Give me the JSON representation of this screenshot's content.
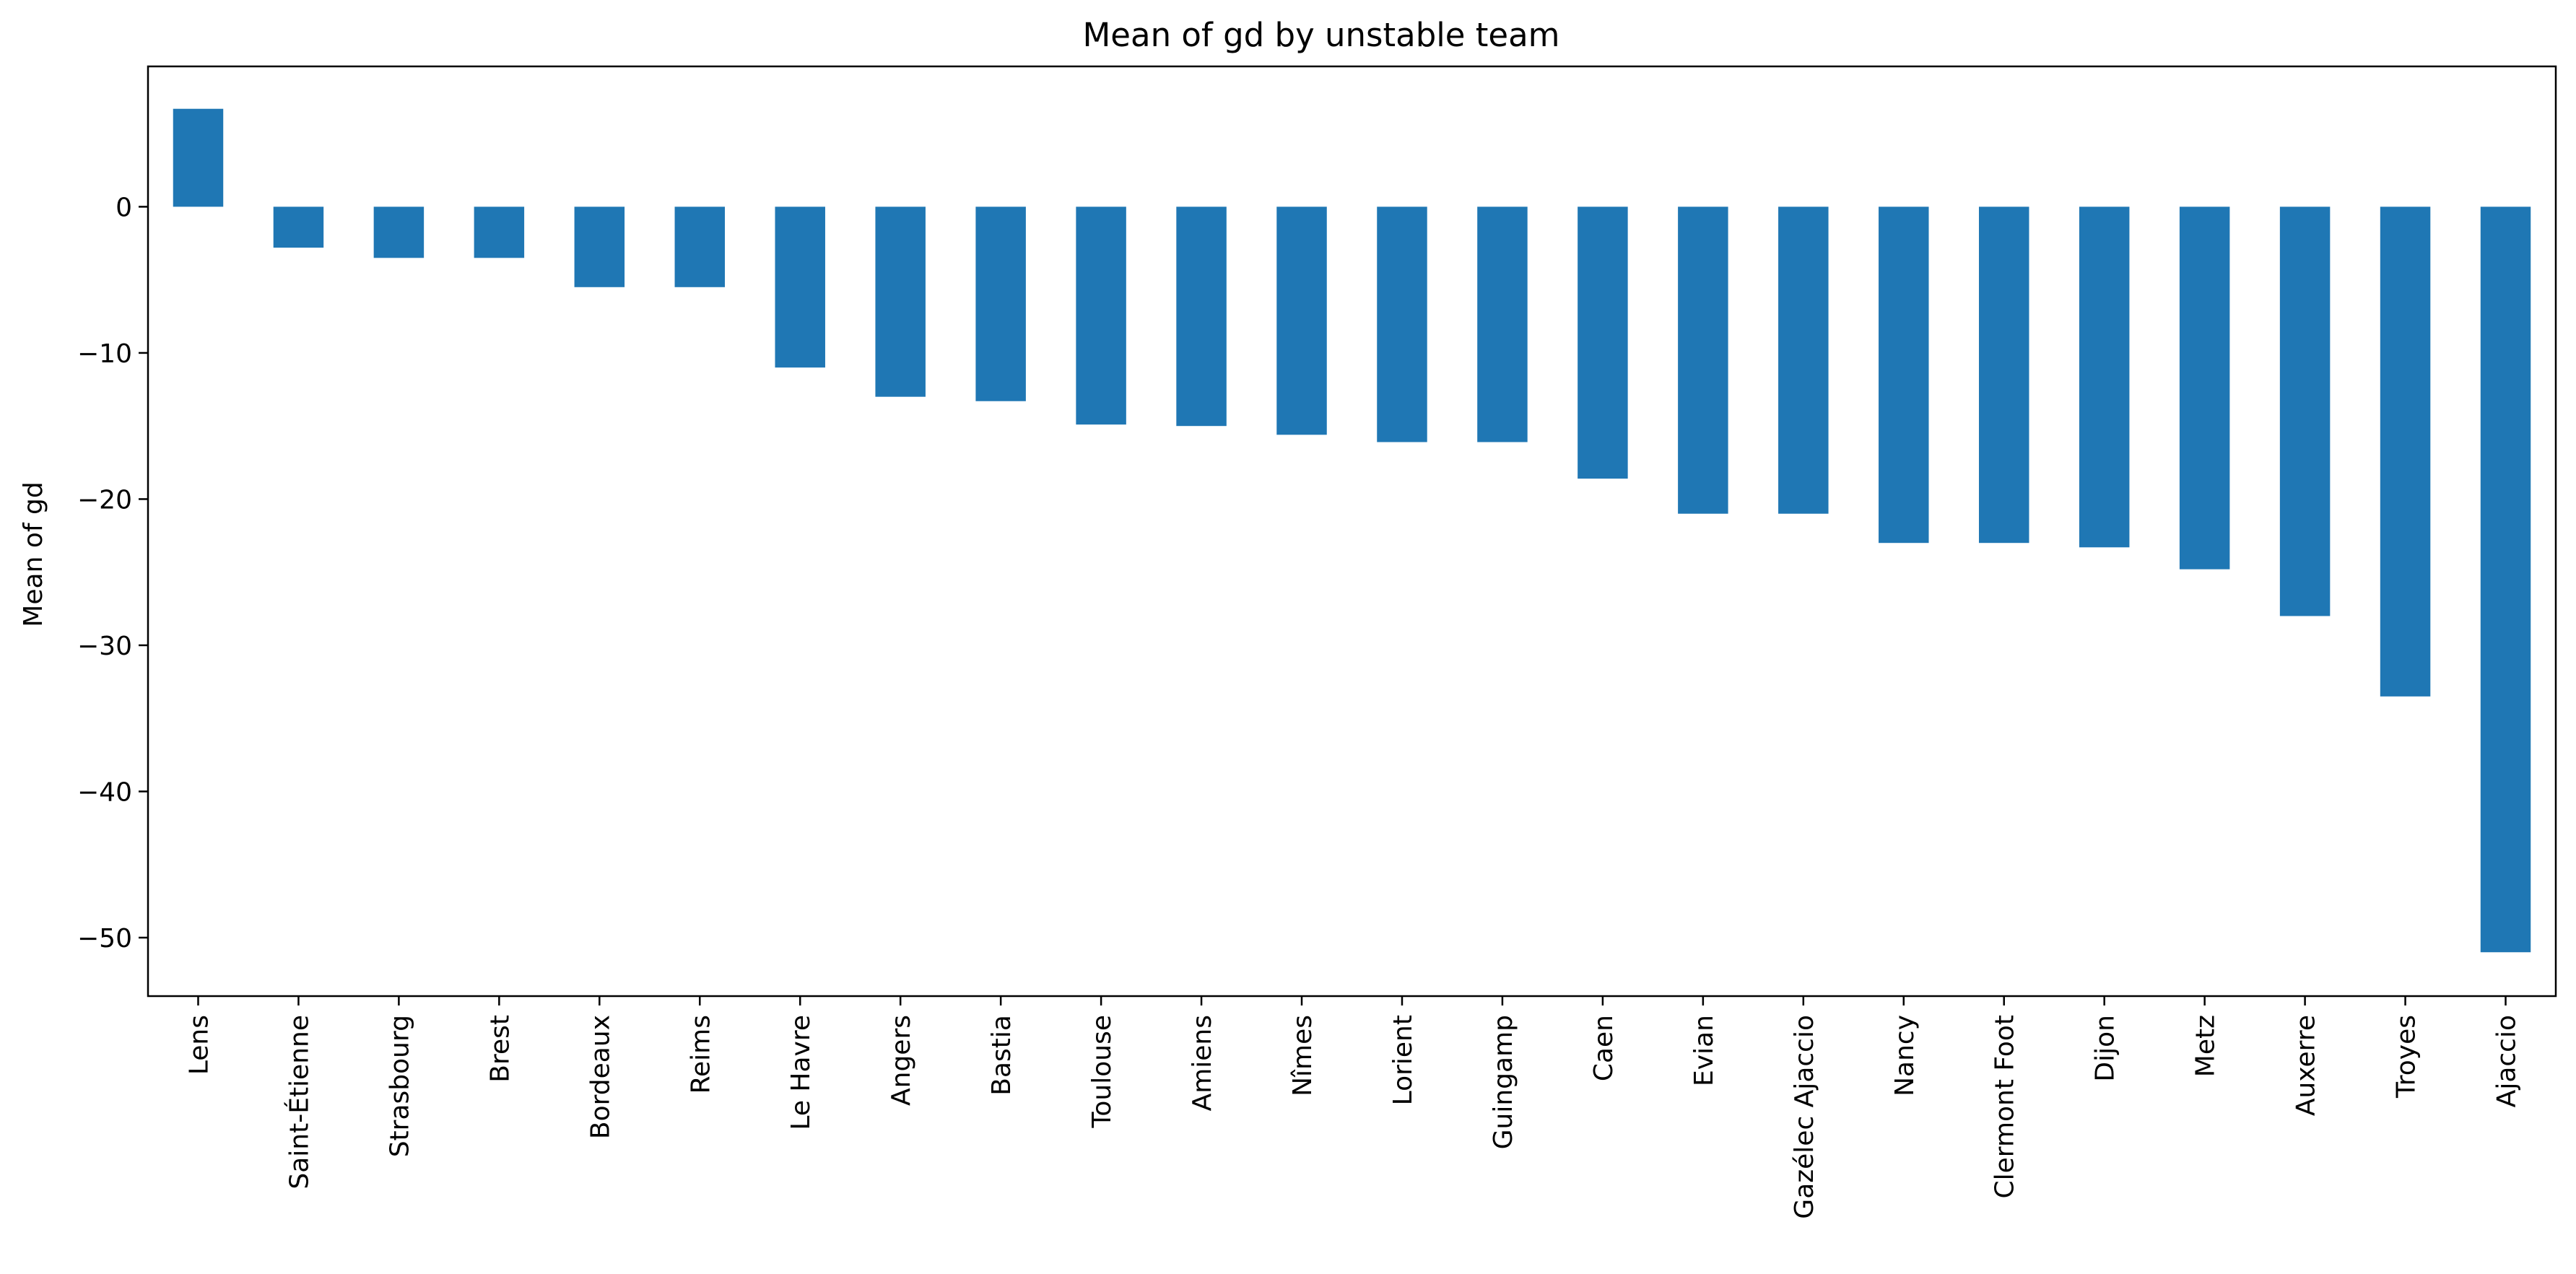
{
  "chart_data": {
    "type": "bar",
    "title": "Mean of gd by unstable team",
    "xlabel": "",
    "ylabel": "Mean of gd",
    "categories": [
      "Lens",
      "Saint-Étienne",
      "Strasbourg",
      "Brest",
      "Bordeaux",
      "Reims",
      "Le Havre",
      "Angers",
      "Bastia",
      "Toulouse",
      "Amiens",
      "Nîmes",
      "Lorient",
      "Guingamp",
      "Caen",
      "Evian",
      "Gazélec Ajaccio",
      "Nancy",
      "Clermont Foot",
      "Dijon",
      "Metz",
      "Auxerre",
      "Troyes",
      "Ajaccio"
    ],
    "values": [
      6.7,
      -2.8,
      -3.5,
      -3.5,
      -5.5,
      -5.5,
      -11.0,
      -13.0,
      -13.3,
      -14.9,
      -15.0,
      -15.6,
      -16.1,
      -16.1,
      -18.6,
      -21.0,
      -21.0,
      -23.0,
      -23.0,
      -23.3,
      -24.8,
      -28.0,
      -33.5,
      -51.0
    ],
    "ylim": [
      -54,
      9.6
    ],
    "yticks": [
      0,
      -10,
      -20,
      -30,
      -40,
      -50
    ],
    "grid": false,
    "bar_color": "#1f77b4"
  }
}
